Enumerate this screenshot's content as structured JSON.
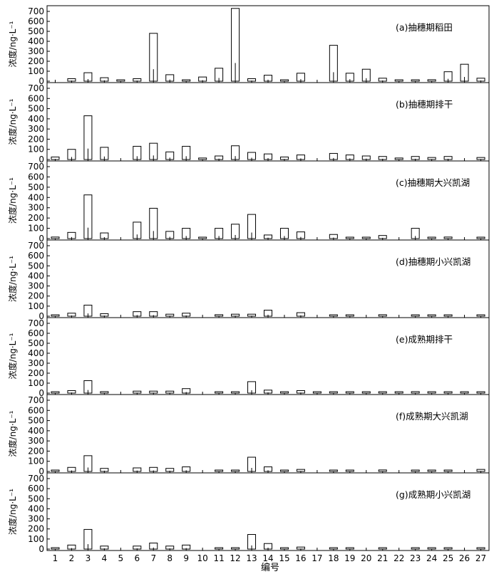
{
  "chart_data": {
    "type": "bar",
    "xlabel": "编号",
    "ylabel": "浓度/ng·L⁻¹",
    "ylim": [
      0,
      750
    ],
    "yticks": [
      0,
      100,
      200,
      300,
      400,
      500,
      600,
      700
    ],
    "categories": [
      "1",
      "2",
      "3",
      "4",
      "5",
      "6",
      "7",
      "8",
      "9",
      "10",
      "11",
      "12",
      "13",
      "14",
      "15",
      "16",
      "17",
      "18",
      "19",
      "20",
      "21",
      "22",
      "23",
      "24",
      "25",
      "26",
      "27"
    ],
    "panels": [
      {
        "label": "(a)抽穗期稻田",
        "values": [
          0,
          25,
          85,
          35,
          8,
          25,
          480,
          65,
          12,
          42,
          130,
          730,
          25,
          60,
          8,
          80,
          0,
          360,
          80,
          120,
          30,
          5,
          10,
          15,
          95,
          170,
          30
        ]
      },
      {
        "label": "(b)抽穗期排干",
        "values": [
          25,
          100,
          430,
          120,
          0,
          130,
          160,
          75,
          130,
          15,
          35,
          135,
          70,
          55,
          25,
          45,
          0,
          60,
          45,
          35,
          30,
          15,
          30,
          20,
          30,
          0,
          20
        ]
      },
      {
        "label": "(c)抽穗期大兴凯湖",
        "values": [
          15,
          60,
          425,
          55,
          0,
          160,
          295,
          70,
          100,
          10,
          100,
          140,
          235,
          35,
          100,
          65,
          0,
          40,
          10,
          10,
          30,
          0,
          100,
          5,
          15,
          0,
          5
        ]
      },
      {
        "label": "(d)抽穗期小兴凯湖",
        "values": [
          8,
          30,
          110,
          25,
          0,
          45,
          45,
          20,
          30,
          0,
          15,
          20,
          20,
          60,
          0,
          35,
          0,
          3,
          3,
          0,
          15,
          0,
          3,
          3,
          3,
          0,
          8
        ]
      },
      {
        "label": "(e)成熟期排干",
        "values": [
          3,
          25,
          125,
          15,
          0,
          20,
          20,
          20,
          45,
          0,
          8,
          8,
          115,
          30,
          3,
          25,
          3,
          3,
          3,
          3,
          3,
          3,
          15,
          10,
          5,
          3,
          10
        ]
      },
      {
        "label": "(f)成熟期大兴凯湖",
        "values": [
          10,
          40,
          155,
          30,
          0,
          35,
          40,
          30,
          45,
          0,
          10,
          10,
          140,
          45,
          3,
          20,
          0,
          3,
          3,
          0,
          15,
          0,
          10,
          3,
          3,
          0,
          20
        ]
      },
      {
        "label": "(g)成熟期小兴凯湖",
        "values": [
          5,
          40,
          195,
          30,
          0,
          30,
          60,
          30,
          40,
          0,
          5,
          10,
          145,
          55,
          3,
          20,
          0,
          3,
          3,
          0,
          8,
          0,
          5,
          3,
          3,
          0,
          10
        ]
      }
    ]
  }
}
